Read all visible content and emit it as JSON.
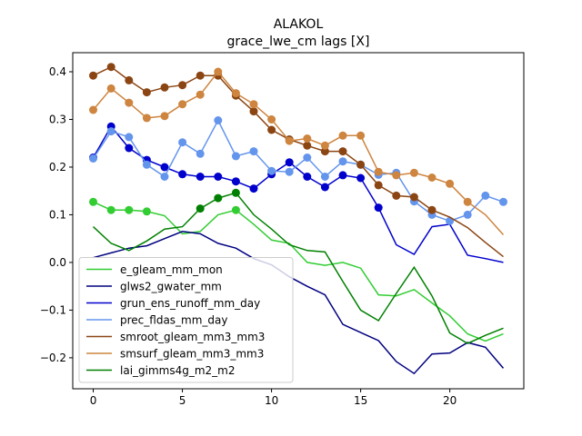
{
  "chart_data": {
    "type": "line",
    "title": "ALAKOL",
    "subtitle": "grace_lwe_cm lags [X]",
    "xlabel": "",
    "ylabel": "",
    "xlim": [
      -1.15,
      24.15
    ],
    "ylim": [
      -0.265,
      0.44
    ],
    "xticks": [
      0,
      5,
      10,
      15,
      20
    ],
    "yticks": [
      -0.2,
      -0.1,
      0.0,
      0.1,
      0.2,
      0.3,
      0.4
    ],
    "ytick_labels": [
      "−0.2",
      "−0.1",
      "0.0",
      "0.1",
      "0.2",
      "0.3",
      "0.4"
    ],
    "grid": false,
    "legend_position": "lower-left",
    "x": [
      0,
      1,
      2,
      3,
      4,
      5,
      6,
      7,
      8,
      9,
      10,
      11,
      12,
      13,
      14,
      15,
      16,
      17,
      18,
      19,
      20,
      21,
      22,
      23
    ],
    "series": [
      {
        "name": "e_gleam_mm_mon",
        "color": "#32cd32",
        "values": [
          0.127,
          0.11,
          0.11,
          0.107,
          0.098,
          0.06,
          0.065,
          0.1,
          0.11,
          0.08,
          0.047,
          0.04,
          0.0,
          -0.006,
          0.0,
          -0.012,
          -0.068,
          -0.07,
          -0.057,
          -0.085,
          -0.112,
          -0.15,
          -0.165,
          -0.15
        ],
        "markers": [
          0,
          1,
          2,
          3,
          8
        ]
      },
      {
        "name": "glws2_gwater_mm",
        "color": "#000080",
        "values": [
          0.01,
          0.02,
          0.03,
          0.035,
          0.05,
          0.065,
          0.06,
          0.04,
          0.03,
          0.008,
          -0.005,
          -0.03,
          -0.05,
          -0.068,
          -0.13,
          -0.147,
          -0.164,
          -0.208,
          -0.233,
          -0.192,
          -0.19,
          -0.168,
          -0.178,
          -0.222
        ],
        "markers": []
      },
      {
        "name": "grun_ens_runoff_mm_day",
        "color": "#0000cd",
        "values": [
          0.22,
          0.285,
          0.24,
          0.215,
          0.2,
          0.185,
          0.18,
          0.18,
          0.17,
          0.155,
          0.185,
          0.21,
          0.18,
          0.158,
          0.183,
          0.177,
          0.115,
          0.037,
          0.017,
          0.075,
          0.08,
          0.015,
          0.008,
          0.0
        ],
        "markers": [
          0,
          1,
          2,
          3,
          4,
          5,
          6,
          7,
          8,
          9,
          10,
          11,
          12,
          13,
          14,
          15,
          16
        ]
      },
      {
        "name": "prec_fldas_mm_day",
        "color": "#6495ed",
        "values": [
          0.218,
          0.275,
          0.263,
          0.205,
          0.18,
          0.252,
          0.228,
          0.298,
          0.223,
          0.233,
          0.192,
          0.19,
          0.22,
          0.18,
          0.212,
          0.205,
          0.184,
          0.188,
          0.128,
          0.1,
          0.087,
          0.1,
          0.14,
          0.127
        ],
        "markers": [
          0,
          1,
          2,
          3,
          4,
          5,
          6,
          7,
          8,
          9,
          10,
          11,
          12,
          13,
          14,
          15,
          16,
          17,
          18,
          19,
          20,
          21,
          22,
          23
        ]
      },
      {
        "name": "smroot_gleam_mm3_mm3",
        "color": "#8b4513",
        "values": [
          0.392,
          0.41,
          0.382,
          0.357,
          0.367,
          0.372,
          0.392,
          0.392,
          0.35,
          0.317,
          0.278,
          0.258,
          0.245,
          0.233,
          0.233,
          0.205,
          0.162,
          0.14,
          0.137,
          0.11,
          0.095,
          0.073,
          0.042,
          0.012
        ],
        "markers": [
          0,
          1,
          2,
          3,
          4,
          5,
          6,
          7,
          8,
          9,
          10,
          11,
          12,
          13,
          14,
          15,
          16,
          17,
          18,
          19
        ]
      },
      {
        "name": "smsurf_gleam_mm3_mm3",
        "color": "#cd853f",
        "values": [
          0.32,
          0.365,
          0.335,
          0.303,
          0.307,
          0.332,
          0.352,
          0.4,
          0.355,
          0.332,
          0.3,
          0.255,
          0.26,
          0.245,
          0.266,
          0.266,
          0.19,
          0.183,
          0.188,
          0.178,
          0.165,
          0.127,
          0.1,
          0.058
        ],
        "markers": [
          0,
          1,
          2,
          3,
          4,
          5,
          6,
          7,
          8,
          9,
          10,
          11,
          12,
          13,
          14,
          15,
          16,
          17,
          18,
          19,
          20,
          21
        ]
      },
      {
        "name": "lai_gimms4g_m2_m2",
        "color": "#008000",
        "values": [
          0.075,
          0.04,
          0.025,
          0.045,
          0.07,
          0.075,
          0.113,
          0.135,
          0.146,
          0.1,
          0.07,
          0.037,
          0.025,
          0.022,
          -0.04,
          -0.1,
          -0.122,
          -0.065,
          -0.01,
          -0.07,
          -0.148,
          -0.17,
          -0.153,
          -0.138
        ],
        "markers": [
          6,
          7,
          8
        ]
      }
    ]
  }
}
